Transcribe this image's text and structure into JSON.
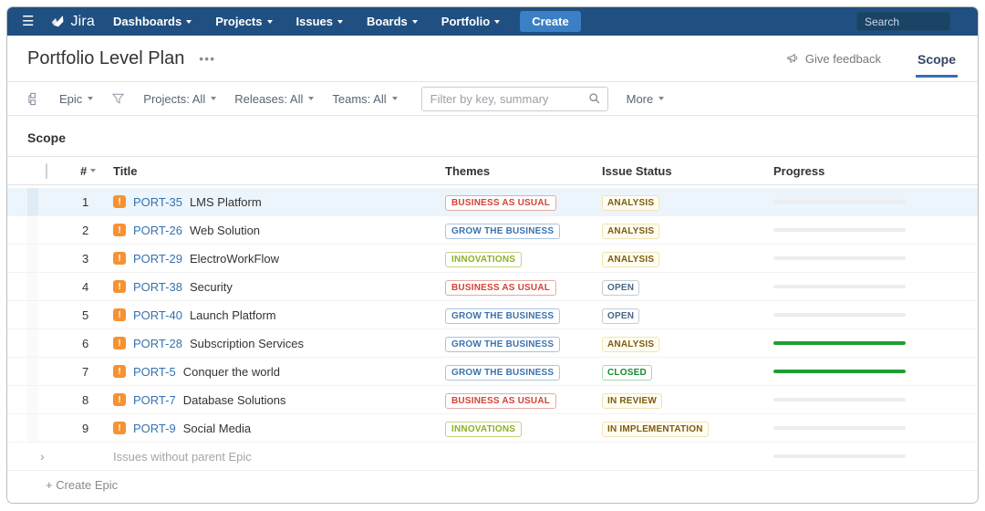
{
  "navbar": {
    "brand": "Jira",
    "items": [
      "Dashboards",
      "Projects",
      "Issues",
      "Boards",
      "Portfolio"
    ],
    "create_label": "Create",
    "search_placeholder": "Search"
  },
  "header": {
    "title": "Portfolio Level Plan",
    "menu_ellipsis": "•••",
    "give_feedback_label": "Give feedback",
    "active_tab": "Scope"
  },
  "filter_bar": {
    "hierarchy_level": "Epic",
    "projects": "Projects: All",
    "releases": "Releases: All",
    "teams": "Teams: All",
    "filter_placeholder": "Filter by key, summary",
    "more": "More"
  },
  "scope": {
    "heading": "Scope"
  },
  "table": {
    "columns": {
      "num": "#",
      "title": "Title",
      "themes": "Themes",
      "issue_status": "Issue Status",
      "progress": "Progress"
    },
    "rows": [
      {
        "num": "1",
        "key": "PORT-35",
        "title": "LMS Platform",
        "theme": {
          "label": "BUSINESS AS USUAL",
          "color": "red"
        },
        "status": {
          "label": "ANALYSIS",
          "type": "yellow"
        },
        "progress": 0,
        "selected": true
      },
      {
        "num": "2",
        "key": "PORT-26",
        "title": "Web Solution",
        "theme": {
          "label": "GROW THE BUSINESS",
          "color": "blue"
        },
        "status": {
          "label": "ANALYSIS",
          "type": "yellow"
        },
        "progress": 0
      },
      {
        "num": "3",
        "key": "PORT-29",
        "title": "ElectroWorkFlow",
        "theme": {
          "label": "INNOVATIONS",
          "color": "green"
        },
        "status": {
          "label": "ANALYSIS",
          "type": "yellow"
        },
        "progress": 0
      },
      {
        "num": "4",
        "key": "PORT-38",
        "title": "Security",
        "theme": {
          "label": "BUSINESS AS USUAL",
          "color": "red"
        },
        "status": {
          "label": "OPEN",
          "type": "gray"
        },
        "progress": 0
      },
      {
        "num": "5",
        "key": "PORT-40",
        "title": "Launch Platform",
        "theme": {
          "label": "GROW THE BUSINESS",
          "color": "blue"
        },
        "status": {
          "label": "OPEN",
          "type": "gray"
        },
        "progress": 0
      },
      {
        "num": "6",
        "key": "PORT-28",
        "title": "Subscription Services",
        "theme": {
          "label": "GROW THE BUSINESS",
          "color": "blue"
        },
        "status": {
          "label": "ANALYSIS",
          "type": "yellow"
        },
        "progress": 100
      },
      {
        "num": "7",
        "key": "PORT-5",
        "title": "Conquer the world",
        "theme": {
          "label": "GROW THE BUSINESS",
          "color": "blue"
        },
        "status": {
          "label": "CLOSED",
          "type": "green"
        },
        "progress": 100
      },
      {
        "num": "8",
        "key": "PORT-7",
        "title": "Database Solutions",
        "theme": {
          "label": "BUSINESS AS USUAL",
          "color": "red"
        },
        "status": {
          "label": "IN REVIEW",
          "type": "yellow"
        },
        "progress": 0
      },
      {
        "num": "9",
        "key": "PORT-9",
        "title": "Social Media",
        "theme": {
          "label": "INNOVATIONS",
          "color": "green"
        },
        "status": {
          "label": "IN IMPLEMENTATION",
          "type": "yellow"
        },
        "progress": 0
      }
    ],
    "unparented_label": "Issues without parent Epic",
    "unparented_progress": 0,
    "create_epic_label": "+ Create Epic"
  },
  "colors": {
    "navbar_bg": "#205081",
    "create_button_bg": "#3b7fc4",
    "link_blue": "#3572b0",
    "epic_icon_orange": "#f79232",
    "theme_red": "#d04437",
    "theme_blue": "#3b73af",
    "theme_green": "#8eb021",
    "status_yellow_text": "#7d5c10",
    "status_gray_text": "#4a6785",
    "status_green_text": "#14892c",
    "progress_green": "#1e9e31",
    "selected_row_bg": "#ecf5fb",
    "tab_underline": "#3572b0"
  }
}
